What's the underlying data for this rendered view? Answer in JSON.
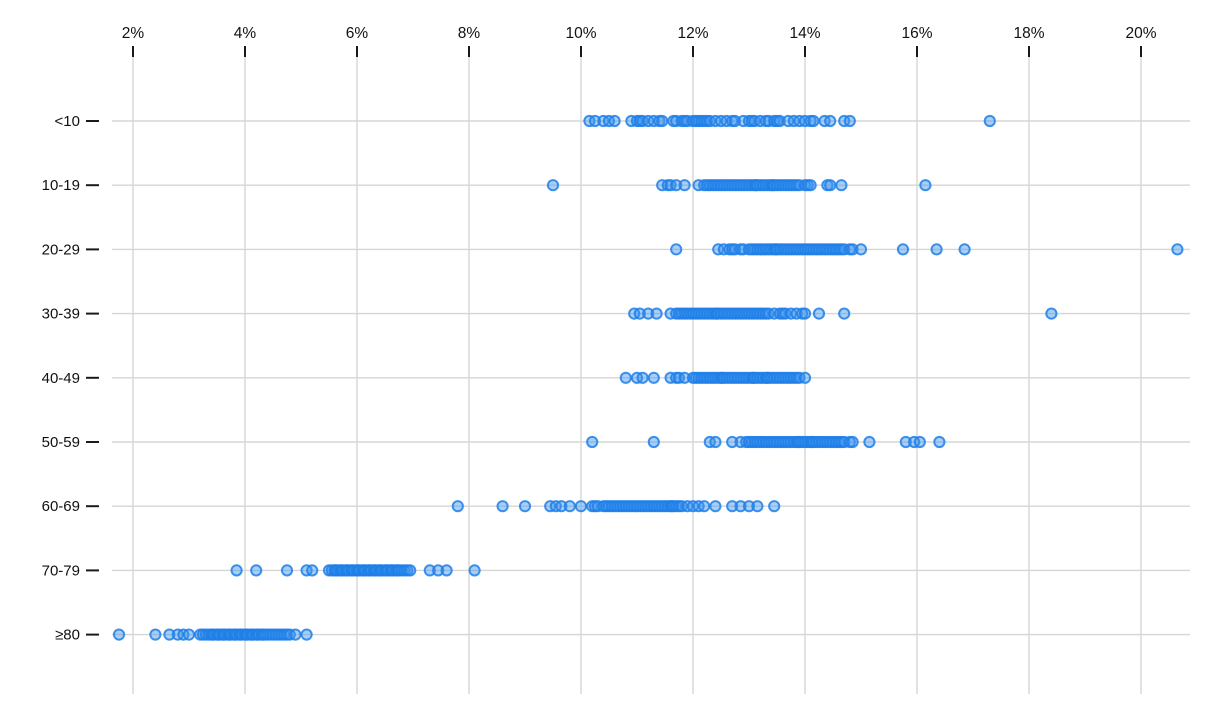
{
  "chart_data": {
    "type": "scatter",
    "subtype": "horizontal-strip-plot",
    "title": "",
    "xlabel": "",
    "ylabel": "",
    "legend": "none",
    "grid": "on",
    "x_axis": {
      "position": "top",
      "tick_values": [
        2,
        4,
        6,
        8,
        10,
        12,
        14,
        16,
        18,
        20
      ],
      "tick_labels": [
        "2%",
        "4%",
        "6%",
        "8%",
        "10%",
        "12%",
        "14%",
        "16%",
        "18%",
        "20%"
      ],
      "range": [
        1.6,
        21.4
      ]
    },
    "categories": [
      "<10",
      "10-19",
      "20-29",
      "30-39",
      "40-49",
      "50-59",
      "60-69",
      "70-79",
      "≥80"
    ],
    "series": [
      {
        "category": "<10",
        "values": [
          10.15,
          10.25,
          10.4,
          10.5,
          10.6,
          10.9,
          11.0,
          11.05,
          11.1,
          11.2,
          11.3,
          11.4,
          11.45,
          11.65,
          11.7,
          11.8,
          11.85,
          11.9,
          12.0,
          12.05,
          12.1,
          12.15,
          12.2,
          12.25,
          12.3,
          12.4,
          12.5,
          12.6,
          12.7,
          12.75,
          12.9,
          13.0,
          13.05,
          13.1,
          13.2,
          13.3,
          13.35,
          13.45,
          13.5,
          13.55,
          13.7,
          13.8,
          13.9,
          14.0,
          14.1,
          14.15,
          14.35,
          14.45,
          14.7,
          14.8,
          17.3
        ]
      },
      {
        "category": "10-19",
        "values": [
          9.5,
          11.45,
          11.55,
          11.6,
          11.7,
          11.85,
          12.1,
          12.2,
          12.25,
          12.3,
          12.35,
          12.4,
          12.45,
          12.5,
          12.55,
          12.6,
          12.65,
          12.7,
          12.75,
          12.8,
          12.85,
          12.9,
          12.95,
          13.0,
          13.05,
          13.1,
          13.12,
          13.15,
          13.2,
          13.25,
          13.3,
          13.35,
          13.4,
          13.42,
          13.45,
          13.5,
          13.55,
          13.6,
          13.65,
          13.7,
          13.75,
          13.8,
          13.85,
          13.9,
          14.0,
          14.05,
          14.1,
          14.4,
          14.45,
          14.65,
          16.15
        ]
      },
      {
        "category": "20-29",
        "values": [
          11.7,
          12.45,
          12.55,
          12.65,
          12.7,
          12.75,
          12.85,
          12.9,
          13.0,
          13.05,
          13.1,
          13.15,
          13.2,
          13.25,
          13.3,
          13.35,
          13.4,
          13.45,
          13.48,
          13.5,
          13.55,
          13.6,
          13.65,
          13.7,
          13.75,
          13.8,
          13.85,
          13.9,
          13.95,
          14.0,
          14.05,
          14.1,
          14.15,
          14.2,
          14.25,
          14.3,
          14.35,
          14.4,
          14.45,
          14.5,
          14.55,
          14.6,
          14.65,
          14.7,
          14.8,
          14.85,
          15.0,
          15.75,
          16.35,
          16.85,
          20.65
        ]
      },
      {
        "category": "30-39",
        "values": [
          10.95,
          11.05,
          11.2,
          11.35,
          11.6,
          11.7,
          11.75,
          11.8,
          11.85,
          11.9,
          11.95,
          12.0,
          12.05,
          12.1,
          12.15,
          12.2,
          12.25,
          12.3,
          12.35,
          12.4,
          12.42,
          12.45,
          12.5,
          12.55,
          12.6,
          12.65,
          12.7,
          12.75,
          12.8,
          12.85,
          12.9,
          12.95,
          13.0,
          13.05,
          13.1,
          13.15,
          13.2,
          13.25,
          13.3,
          13.35,
          13.45,
          13.55,
          13.6,
          13.65,
          13.75,
          13.85,
          13.95,
          14.0,
          14.25,
          14.7,
          18.4
        ]
      },
      {
        "category": "40-49",
        "values": [
          10.8,
          11.0,
          11.1,
          11.3,
          11.6,
          11.7,
          11.75,
          11.85,
          12.0,
          12.05,
          12.1,
          12.15,
          12.2,
          12.25,
          12.3,
          12.35,
          12.4,
          12.45,
          12.5,
          12.52,
          12.55,
          12.6,
          12.65,
          12.7,
          12.75,
          12.8,
          12.85,
          12.9,
          12.95,
          13.0,
          13.05,
          13.08,
          13.1,
          13.15,
          13.2,
          13.25,
          13.3,
          13.32,
          13.35,
          13.4,
          13.45,
          13.5,
          13.55,
          13.6,
          13.65,
          13.7,
          13.75,
          13.8,
          13.85,
          13.9,
          14.0
        ]
      },
      {
        "category": "50-59",
        "values": [
          10.2,
          11.3,
          12.3,
          12.4,
          12.7,
          12.85,
          12.95,
          13.0,
          13.05,
          13.1,
          13.15,
          13.2,
          13.25,
          13.3,
          13.35,
          13.4,
          13.45,
          13.5,
          13.55,
          13.6,
          13.65,
          13.7,
          13.75,
          13.8,
          13.85,
          13.88,
          13.9,
          13.95,
          14.0,
          14.05,
          14.1,
          14.12,
          14.15,
          14.2,
          14.25,
          14.3,
          14.35,
          14.4,
          14.45,
          14.5,
          14.55,
          14.6,
          14.65,
          14.7,
          14.8,
          14.85,
          15.15,
          15.8,
          15.95,
          16.05,
          16.4
        ]
      },
      {
        "category": "60-69",
        "values": [
          7.8,
          8.6,
          9.0,
          9.45,
          9.55,
          9.65,
          9.8,
          10.0,
          10.2,
          10.25,
          10.3,
          10.4,
          10.45,
          10.5,
          10.55,
          10.6,
          10.65,
          10.7,
          10.75,
          10.8,
          10.85,
          10.9,
          10.95,
          11.0,
          11.05,
          11.1,
          11.15,
          11.2,
          11.25,
          11.3,
          11.35,
          11.4,
          11.45,
          11.5,
          11.55,
          11.6,
          11.62,
          11.65,
          11.7,
          11.75,
          11.8,
          11.9,
          12.0,
          12.1,
          12.2,
          12.4,
          12.7,
          12.85,
          13.0,
          13.15,
          13.45
        ]
      },
      {
        "category": "70-79",
        "values": [
          3.85,
          4.2,
          4.75,
          5.1,
          5.2,
          5.5,
          5.55,
          5.6,
          5.62,
          5.65,
          5.7,
          5.72,
          5.75,
          5.8,
          5.82,
          5.85,
          5.9,
          5.92,
          5.95,
          6.0,
          6.02,
          6.05,
          6.1,
          6.12,
          6.15,
          6.2,
          6.22,
          6.25,
          6.3,
          6.32,
          6.35,
          6.4,
          6.42,
          6.45,
          6.5,
          6.52,
          6.55,
          6.6,
          6.62,
          6.65,
          6.7,
          6.72,
          6.75,
          6.8,
          6.85,
          6.9,
          6.95,
          7.3,
          7.45,
          7.6,
          8.1
        ]
      },
      {
        "category": "≥80",
        "values": [
          1.75,
          2.4,
          2.65,
          2.8,
          2.9,
          3.0,
          3.2,
          3.25,
          3.3,
          3.35,
          3.4,
          3.42,
          3.45,
          3.5,
          3.52,
          3.55,
          3.6,
          3.62,
          3.65,
          3.7,
          3.72,
          3.75,
          3.8,
          3.82,
          3.85,
          3.9,
          3.92,
          3.95,
          4.0,
          4.02,
          4.05,
          4.1,
          4.12,
          4.15,
          4.2,
          4.22,
          4.25,
          4.3,
          4.32,
          4.35,
          4.4,
          4.45,
          4.5,
          4.55,
          4.6,
          4.65,
          4.7,
          4.75,
          4.8,
          4.9,
          5.1
        ]
      }
    ],
    "colors": {
      "point_fill": "#3e94f0",
      "point_stroke": "#1f7fe8",
      "grid_line": "#d6d6d6",
      "axis_text": "#111111",
      "tick_mark": "#1a1a1a"
    }
  }
}
